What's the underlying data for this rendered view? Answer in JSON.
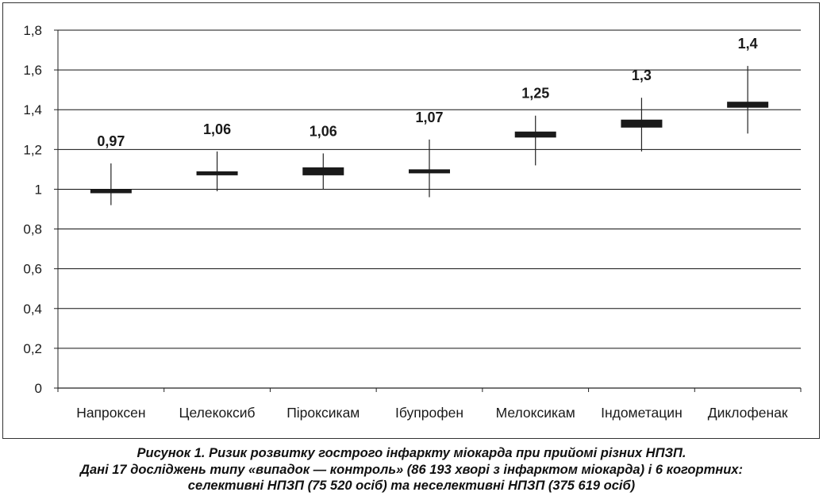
{
  "chart_data": {
    "type": "box",
    "ylim": [
      0,
      1.8
    ],
    "yticks": [
      0,
      0.2,
      0.4,
      0.6,
      0.8,
      1,
      1.2,
      1.4,
      1.6,
      1.8
    ],
    "ytick_labels": [
      "0",
      "0,2",
      "0,4",
      "0,6",
      "0,8",
      "1",
      "1,2",
      "1,4",
      "1,6",
      "1,8"
    ],
    "grid": true,
    "legend": "none",
    "categories": [
      "Напроксен",
      "Целекоксиб",
      "Піроксикам",
      "Ібупрофен",
      "Мелоксикам",
      "Індометацин",
      "Диклофенак"
    ],
    "values": [
      0.97,
      1.06,
      1.06,
      1.07,
      1.25,
      1.3,
      1.4
    ],
    "value_labels": [
      "0,97",
      "1,06",
      "1,06",
      "1,07",
      "1,25",
      "1,3",
      "1,4"
    ],
    "ci_low": [
      0.92,
      0.99,
      1.0,
      0.96,
      1.12,
      1.19,
      1.28
    ],
    "ci_high": [
      1.13,
      1.19,
      1.18,
      1.25,
      1.37,
      1.46,
      1.62
    ],
    "box_low": [
      0.98,
      1.07,
      1.07,
      1.08,
      1.26,
      1.31,
      1.41
    ],
    "box_high": [
      1.0,
      1.09,
      1.11,
      1.1,
      1.29,
      1.35,
      1.44
    ]
  },
  "colors": {
    "line": "#222222",
    "grid": "#111111",
    "box": "#1a1a1a",
    "text": "#1a1a1a"
  },
  "caption": {
    "label": "Рисунок 1.",
    "line1": "Ризик розвитку гострого інфаркту міокарда при прийомі різних НПЗП.",
    "line2": "Дані 17 досліджень типу «випадок — контроль» (86 193 хворі з інфарктом міокарда) і 6 когортних:",
    "line3": "селективні НПЗП (75 520 осіб) та неселективні НПЗП (375 619 осіб)"
  }
}
